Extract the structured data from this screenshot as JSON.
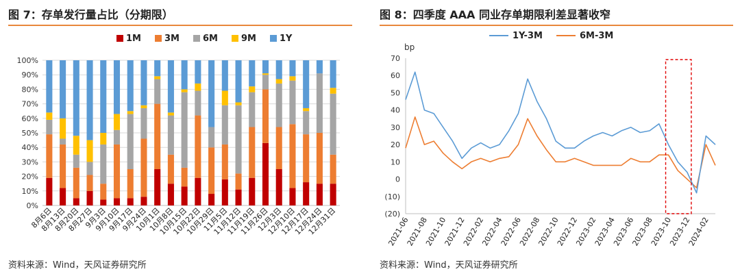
{
  "left_panel": {
    "title": "图 7：存单发行量占比（分期限）",
    "source": "资料来源：Wind，天风证券研究所"
  },
  "right_panel": {
    "title": "图 8：四季度 AAA 同业存单期限利差显著收窄",
    "source": "资料来源：Wind，天风证券研究所"
  },
  "chart_data": [
    {
      "type": "bar",
      "stacked": true,
      "title": "",
      "xlabel": "",
      "ylabel": "",
      "ylim": [
        0,
        100
      ],
      "y_ticks": [
        "0%",
        "10%",
        "20%",
        "30%",
        "40%",
        "50%",
        "60%",
        "70%",
        "80%",
        "90%",
        "100%"
      ],
      "categories": [
        "8月6日",
        "8月13日",
        "8月20日",
        "8月27日",
        "9月3日",
        "9月10日",
        "9月17日",
        "9月24日",
        "10月1日",
        "10月8日",
        "10月15日",
        "10月22日",
        "10月29日",
        "11月5日",
        "11月12日",
        "11月19日",
        "11月26日",
        "12月3日",
        "12月10日",
        "12月17日",
        "12月24日",
        "12月31日"
      ],
      "legend_position": "top",
      "grid": true,
      "series": [
        {
          "name": "1M",
          "color": "#c00000",
          "values": [
            19,
            12,
            5,
            10,
            4,
            5,
            5,
            6,
            25,
            15,
            13,
            19,
            8,
            18,
            11,
            19,
            43,
            25,
            12,
            16,
            15,
            15
          ]
        },
        {
          "name": "3M",
          "color": "#ed7d31",
          "values": [
            30,
            30,
            21,
            11,
            11,
            37,
            20,
            40,
            45,
            20,
            13,
            43,
            32,
            24,
            11,
            35,
            37,
            29,
            44,
            33,
            35,
            20
          ]
        },
        {
          "name": "6M",
          "color": "#a5a5a5",
          "values": [
            10,
            4,
            9,
            9,
            27,
            10,
            38,
            21,
            17,
            27,
            52,
            17,
            14,
            27,
            47,
            24,
            10,
            30,
            30,
            16,
            41,
            42
          ]
        },
        {
          "name": "9M",
          "color": "#ffc000",
          "values": [
            5,
            14,
            13,
            15,
            8,
            11,
            2,
            2,
            2,
            2,
            2,
            5,
            0,
            10,
            2,
            4,
            1,
            3,
            3,
            2,
            0,
            4
          ]
        },
        {
          "name": "1Y",
          "color": "#5b9bd5",
          "values": [
            36,
            40,
            52,
            55,
            50,
            37,
            35,
            31,
            11,
            36,
            20,
            16,
            46,
            21,
            29,
            18,
            9,
            13,
            11,
            33,
            9,
            19
          ]
        }
      ]
    },
    {
      "type": "line",
      "title": "",
      "xlabel": "",
      "ylabel": "bp",
      "ylim": [
        -20,
        70
      ],
      "y_ticks": [
        "(20)",
        "(10)",
        "0",
        "10",
        "20",
        "30",
        "40",
        "50",
        "60",
        "70"
      ],
      "x_ticks": [
        "2021-06",
        "2021-08",
        "2021-10",
        "2021-12",
        "2022-02",
        "2022-04",
        "2022-06",
        "2022-08",
        "2022-10",
        "2022-12",
        "2023-02",
        "2023-04",
        "2023-06",
        "2023-08",
        "2023-10",
        "2023-12",
        "2024-02"
      ],
      "legend_position": "top",
      "grid": false,
      "highlight_box": {
        "from": "2023-10",
        "to": "2023-12",
        "color": "#e00000"
      },
      "series": [
        {
          "name": "1Y-3M",
          "color": "#5b9bd5",
          "x": [
            "2021-06",
            "2021-07",
            "2021-08",
            "2021-09",
            "2021-10",
            "2021-11",
            "2021-12",
            "2022-01",
            "2022-02",
            "2022-03",
            "2022-04",
            "2022-05",
            "2022-06",
            "2022-07",
            "2022-08",
            "2022-09",
            "2022-10",
            "2022-11",
            "2022-12",
            "2023-01",
            "2023-02",
            "2023-03",
            "2023-04",
            "2023-05",
            "2023-06",
            "2023-07",
            "2023-08",
            "2023-09",
            "2023-10",
            "2023-11",
            "2023-12",
            "2024-01",
            "2024-02",
            "2024-03"
          ],
          "values": [
            46,
            62,
            40,
            38,
            30,
            22,
            12,
            18,
            21,
            18,
            20,
            28,
            38,
            58,
            45,
            35,
            22,
            18,
            18,
            22,
            25,
            27,
            25,
            28,
            30,
            27,
            28,
            32,
            20,
            10,
            4,
            -8,
            25,
            20
          ]
        },
        {
          "name": "6M-3M",
          "color": "#ed7d31",
          "x": [
            "2021-06",
            "2021-07",
            "2021-08",
            "2021-09",
            "2021-10",
            "2021-11",
            "2021-12",
            "2022-01",
            "2022-02",
            "2022-03",
            "2022-04",
            "2022-05",
            "2022-06",
            "2022-07",
            "2022-08",
            "2022-09",
            "2022-10",
            "2022-11",
            "2022-12",
            "2023-01",
            "2023-02",
            "2023-03",
            "2023-04",
            "2023-05",
            "2023-06",
            "2023-07",
            "2023-08",
            "2023-09",
            "2023-10",
            "2023-11",
            "2023-12",
            "2024-01",
            "2024-02",
            "2024-03"
          ],
          "values": [
            18,
            36,
            20,
            22,
            15,
            10,
            6,
            10,
            12,
            10,
            12,
            13,
            20,
            35,
            25,
            17,
            10,
            10,
            12,
            10,
            8,
            8,
            8,
            8,
            12,
            10,
            10,
            14,
            14,
            5,
            0,
            -5,
            20,
            8
          ]
        }
      ]
    }
  ]
}
